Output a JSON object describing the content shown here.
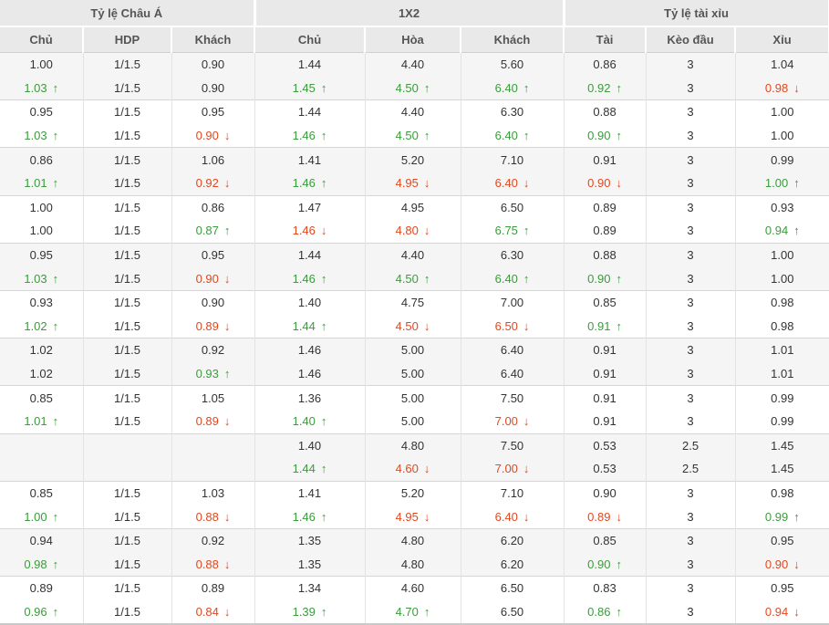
{
  "header": {
    "groups": [
      {
        "label": "Tỷ lệ Châu Á"
      },
      {
        "label": "1X2"
      },
      {
        "label": "Tỷ lệ tài xỉu"
      }
    ],
    "columns": [
      "Chủ",
      "HDP",
      "Khách",
      "Chủ",
      "Hòa",
      "Khách",
      "Tài",
      "Kèo đầu",
      "Xỉu"
    ]
  },
  "colors": {
    "up": "#3b9c3b",
    "down": "#e2481f",
    "header_bg": "#e9e9e9",
    "header_text": "#555555",
    "text": "#333333",
    "row_alt_bg": "#f5f5f5"
  },
  "icons": {
    "up": "↑",
    "down": "↓"
  },
  "table": {
    "groups": [
      {
        "rows": [
          [
            "1.00",
            "1/1.5",
            "0.90",
            "1.44",
            "4.40",
            "5.60",
            "0.86",
            "3",
            "1.04"
          ],
          [
            "1.03^",
            "1/1.5",
            "0.90",
            "1.45^",
            "4.50^",
            "6.40^",
            "0.92^",
            "3",
            "0.98v"
          ]
        ]
      },
      {
        "rows": [
          [
            "0.95",
            "1/1.5",
            "0.95",
            "1.44",
            "4.40",
            "6.30",
            "0.88",
            "3",
            "1.00"
          ],
          [
            "1.03^",
            "1/1.5",
            "0.90v",
            "1.46^",
            "4.50^",
            "6.40^",
            "0.90^",
            "3",
            "1.00"
          ]
        ]
      },
      {
        "rows": [
          [
            "0.86",
            "1/1.5",
            "1.06",
            "1.41",
            "5.20",
            "7.10",
            "0.91",
            "3",
            "0.99"
          ],
          [
            "1.01^",
            "1/1.5",
            "0.92v",
            "1.46^",
            "4.95v",
            "6.40v",
            "0.90v",
            "3",
            "1.00^"
          ]
        ]
      },
      {
        "rows": [
          [
            "1.00",
            "1/1.5",
            "0.86",
            "1.47",
            "4.95",
            "6.50",
            "0.89",
            "3",
            "0.93"
          ],
          [
            "1.00",
            "1/1.5",
            "0.87^",
            "1.46v",
            "4.80v",
            "6.75^",
            "0.89",
            "3",
            "0.94^"
          ]
        ]
      },
      {
        "rows": [
          [
            "0.95",
            "1/1.5",
            "0.95",
            "1.44",
            "4.40",
            "6.30",
            "0.88",
            "3",
            "1.00"
          ],
          [
            "1.03^",
            "1/1.5",
            "0.90v",
            "1.46^",
            "4.50^",
            "6.40^",
            "0.90^",
            "3",
            "1.00"
          ]
        ]
      },
      {
        "rows": [
          [
            "0.93",
            "1/1.5",
            "0.90",
            "1.40",
            "4.75",
            "7.00",
            "0.85",
            "3",
            "0.98"
          ],
          [
            "1.02^",
            "1/1.5",
            "0.89v",
            "1.44^",
            "4.50v",
            "6.50v",
            "0.91^",
            "3",
            "0.98"
          ]
        ]
      },
      {
        "rows": [
          [
            "1.02",
            "1/1.5",
            "0.92",
            "1.46",
            "5.00",
            "6.40",
            "0.91",
            "3",
            "1.01"
          ],
          [
            "1.02",
            "1/1.5",
            "0.93^",
            "1.46",
            "5.00",
            "6.40",
            "0.91",
            "3",
            "1.01"
          ]
        ]
      },
      {
        "rows": [
          [
            "0.85",
            "1/1.5",
            "1.05",
            "1.36",
            "5.00",
            "7.50",
            "0.91",
            "3",
            "0.99"
          ],
          [
            "1.01^",
            "1/1.5",
            "0.89v",
            "1.40^",
            "5.00",
            "7.00v",
            "0.91",
            "3",
            "0.99"
          ]
        ]
      },
      {
        "rows": [
          [
            "",
            "",
            "",
            "1.40",
            "4.80",
            "7.50",
            "0.53",
            "2.5",
            "1.45"
          ],
          [
            "",
            "",
            "",
            "1.44^",
            "4.60v",
            "7.00v",
            "0.53",
            "2.5",
            "1.45"
          ]
        ]
      },
      {
        "rows": [
          [
            "0.85",
            "1/1.5",
            "1.03",
            "1.41",
            "5.20",
            "7.10",
            "0.90",
            "3",
            "0.98"
          ],
          [
            "1.00^",
            "1/1.5",
            "0.88v",
            "1.46^",
            "4.95v",
            "6.40v",
            "0.89v",
            "3",
            "0.99^"
          ]
        ]
      },
      {
        "rows": [
          [
            "0.94",
            "1/1.5",
            "0.92",
            "1.35",
            "4.80",
            "6.20",
            "0.85",
            "3",
            "0.95"
          ],
          [
            "0.98^",
            "1/1.5",
            "0.88v",
            "1.35",
            "4.80",
            "6.20",
            "0.90^",
            "3",
            "0.90v"
          ]
        ]
      },
      {
        "rows": [
          [
            "0.89",
            "1/1.5",
            "0.89",
            "1.34",
            "4.60",
            "6.50",
            "0.83",
            "3",
            "0.95"
          ],
          [
            "0.96^",
            "1/1.5",
            "0.84v",
            "1.39^",
            "4.70^",
            "6.50",
            "0.86^",
            "3",
            "0.94v"
          ]
        ]
      }
    ]
  }
}
